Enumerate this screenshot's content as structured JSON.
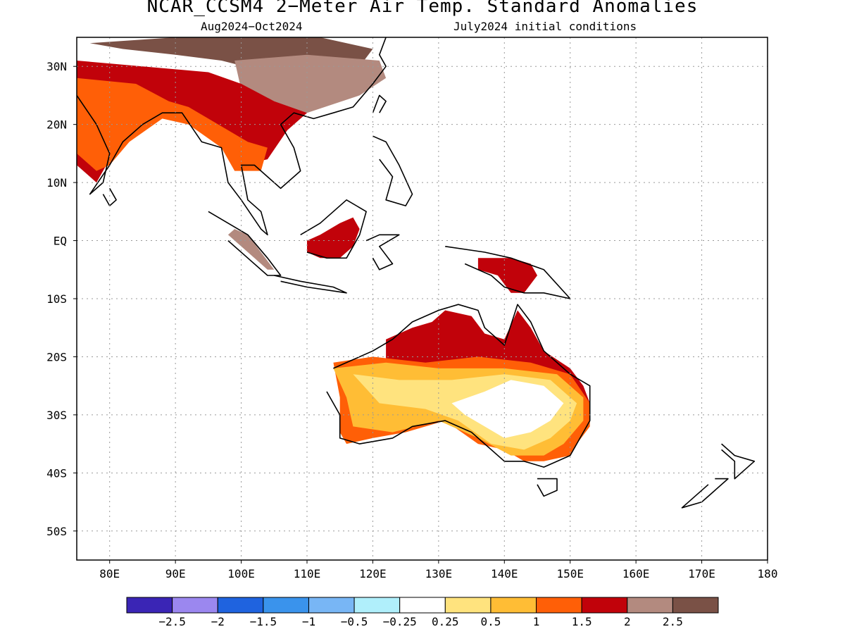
{
  "title": "NCAR_CCSM4 2−Meter Air Temp. Standard Anomalies",
  "subtitle_left": "Aug2024−Oct2024",
  "subtitle_right": "July2024 initial conditions",
  "map": {
    "lon_range": [
      75,
      180
    ],
    "lat_range": [
      -55,
      35
    ],
    "lat_labels": [
      {
        "value": 30,
        "text": "30N"
      },
      {
        "value": 20,
        "text": "20N"
      },
      {
        "value": 10,
        "text": "10N"
      },
      {
        "value": 0,
        "text": "EQ"
      },
      {
        "value": -10,
        "text": "10S"
      },
      {
        "value": -20,
        "text": "20S"
      },
      {
        "value": -30,
        "text": "30S"
      },
      {
        "value": -40,
        "text": "40S"
      },
      {
        "value": -50,
        "text": "50S"
      }
    ],
    "lon_labels": [
      {
        "value": 80,
        "text": "80E"
      },
      {
        "value": 90,
        "text": "90E"
      },
      {
        "value": 100,
        "text": "100E"
      },
      {
        "value": 110,
        "text": "110E"
      },
      {
        "value": 120,
        "text": "120E"
      },
      {
        "value": 130,
        "text": "130E"
      },
      {
        "value": 140,
        "text": "140E"
      },
      {
        "value": 150,
        "text": "150E"
      },
      {
        "value": 160,
        "text": "160E"
      },
      {
        "value": 170,
        "text": "170E"
      },
      {
        "value": 180,
        "text": "180"
      }
    ],
    "gridlines": "dotted"
  },
  "colorbar": {
    "colors": [
      "#3a25b5",
      "#9b87ef",
      "#1f63df",
      "#3a93ec",
      "#78b6f5",
      "#b0effb",
      "#ffffff",
      "#ffe37e",
      "#ffbd35",
      "#ff5f07",
      "#c1020a",
      "#b38a7f",
      "#7a5146"
    ],
    "labels": [
      "−2.5",
      "−2",
      "−1.5",
      "−1",
      "−0.5",
      "−0.25",
      "0.25",
      "0.5",
      "1",
      "1.5",
      "2",
      "2.5"
    ]
  },
  "anomaly_regions": [
    {
      "name": "tibet",
      "level": "above 2.5",
      "color": "#7a5146",
      "points": [
        [
          77,
          34
        ],
        [
          90,
          35
        ],
        [
          102,
          35
        ],
        [
          112,
          35
        ],
        [
          120,
          33
        ],
        [
          118,
          30
        ],
        [
          110,
          30
        ],
        [
          104,
          29
        ],
        [
          97,
          31
        ],
        [
          90,
          32
        ],
        [
          82,
          33
        ]
      ]
    },
    {
      "name": "china",
      "level": "2 to 2.5",
      "color": "#b38a7f",
      "points": [
        [
          99,
          31
        ],
        [
          110,
          32
        ],
        [
          121,
          31
        ],
        [
          122,
          28
        ],
        [
          118,
          25
        ],
        [
          110,
          22
        ],
        [
          104,
          23
        ],
        [
          100,
          26
        ]
      ]
    },
    {
      "name": "south-asia-north",
      "level": "1.5 to 2",
      "color": "#c1020a",
      "points": [
        [
          75,
          31
        ],
        [
          85,
          30
        ],
        [
          95,
          29
        ],
        [
          100,
          27
        ],
        [
          105,
          24
        ],
        [
          110,
          22
        ],
        [
          107,
          19
        ],
        [
          104,
          14
        ],
        [
          100,
          13
        ],
        [
          97,
          16
        ],
        [
          92,
          22
        ],
        [
          88,
          22
        ],
        [
          84,
          19
        ],
        [
          80,
          14
        ],
        [
          78,
          10
        ],
        [
          75,
          13
        ]
      ]
    },
    {
      "name": "south-asia",
      "level": "1 to 1.5",
      "color": "#ff5f07",
      "points": [
        [
          75,
          28
        ],
        [
          84,
          27
        ],
        [
          89,
          24
        ],
        [
          92,
          23
        ],
        [
          95,
          21
        ],
        [
          98,
          19
        ],
        [
          101,
          17
        ],
        [
          104,
          16
        ],
        [
          103,
          12
        ],
        [
          99,
          12
        ],
        [
          97,
          16
        ],
        [
          92,
          20
        ],
        [
          88,
          21
        ],
        [
          83,
          17
        ],
        [
          80,
          13
        ],
        [
          78,
          12
        ],
        [
          75,
          15
        ]
      ]
    },
    {
      "name": "borneo",
      "level": "1.5 to 2",
      "color": "#c1020a",
      "points": [
        [
          110,
          0
        ],
        [
          112,
          1
        ],
        [
          115,
          3
        ],
        [
          117,
          4
        ],
        [
          118,
          2
        ],
        [
          117,
          -1
        ],
        [
          115,
          -3
        ],
        [
          112,
          -3
        ],
        [
          110,
          -2
        ]
      ]
    },
    {
      "name": "sumatra",
      "level": "2 to 2.5",
      "color": "#b38a7f",
      "points": [
        [
          99,
          2
        ],
        [
          101,
          1
        ],
        [
          103,
          -2
        ],
        [
          105,
          -5
        ],
        [
          104,
          -5
        ],
        [
          102,
          -3
        ],
        [
          100,
          -1
        ],
        [
          98,
          1
        ]
      ]
    },
    {
      "name": "new-guinea",
      "level": "1.5 to 2",
      "color": "#c1020a",
      "points": [
        [
          136,
          -3
        ],
        [
          141,
          -3
        ],
        [
          144,
          -4
        ],
        [
          145,
          -6
        ],
        [
          143,
          -9
        ],
        [
          141,
          -9
        ],
        [
          139,
          -6
        ],
        [
          136,
          -5
        ]
      ]
    },
    {
      "name": "australia-north",
      "level": "1.5 to 2",
      "color": "#c1020a",
      "points": [
        [
          122,
          -17
        ],
        [
          126,
          -15
        ],
        [
          129,
          -14
        ],
        [
          131,
          -12
        ],
        [
          135,
          -13
        ],
        [
          137,
          -16
        ],
        [
          140,
          -17
        ],
        [
          142,
          -12
        ],
        [
          144,
          -15
        ],
        [
          146,
          -19
        ],
        [
          150,
          -22
        ],
        [
          152,
          -25
        ],
        [
          153,
          -28
        ],
        [
          150,
          -30
        ],
        [
          144,
          -27
        ],
        [
          138,
          -24
        ],
        [
          130,
          -23
        ],
        [
          122,
          -21
        ]
      ]
    },
    {
      "name": "australia-orange",
      "level": "1 to 1.5",
      "color": "#ff5f07",
      "points": [
        [
          114,
          -21
        ],
        [
          120,
          -20
        ],
        [
          128,
          -21
        ],
        [
          136,
          -20
        ],
        [
          144,
          -21
        ],
        [
          150,
          -23
        ],
        [
          153,
          -28
        ],
        [
          153,
          -32
        ],
        [
          151,
          -35
        ],
        [
          150,
          -37
        ],
        [
          146,
          -38
        ],
        [
          143,
          -38
        ],
        [
          140,
          -36
        ],
        [
          136,
          -35
        ],
        [
          131,
          -31
        ],
        [
          125,
          -33
        ],
        [
          120,
          -34
        ],
        [
          116,
          -35
        ],
        [
          115,
          -33
        ],
        [
          115,
          -27
        ]
      ]
    },
    {
      "name": "australia-amber",
      "level": "0.5 to 1",
      "color": "#ffbd35",
      "points": [
        [
          114,
          -22
        ],
        [
          122,
          -21
        ],
        [
          130,
          -22
        ],
        [
          140,
          -22
        ],
        [
          148,
          -23
        ],
        [
          152,
          -27
        ],
        [
          152,
          -31
        ],
        [
          149,
          -35
        ],
        [
          146,
          -37
        ],
        [
          141,
          -37
        ],
        [
          136,
          -34
        ],
        [
          130,
          -31
        ],
        [
          123,
          -33
        ],
        [
          117,
          -32
        ],
        [
          116,
          -27
        ]
      ]
    },
    {
      "name": "australia-yellow",
      "level": "0.25 to 0.5",
      "color": "#ffe37e",
      "points": [
        [
          117,
          -23
        ],
        [
          124,
          -24
        ],
        [
          132,
          -24
        ],
        [
          140,
          -23
        ],
        [
          147,
          -24
        ],
        [
          151,
          -28
        ],
        [
          150,
          -31
        ],
        [
          147,
          -34
        ],
        [
          143,
          -36
        ],
        [
          138,
          -35
        ],
        [
          133,
          -31
        ],
        [
          128,
          -29
        ],
        [
          121,
          -28
        ]
      ]
    },
    {
      "name": "australia-white",
      "level": "-0.25 to 0.25",
      "color": "#ffffff",
      "points": [
        [
          132,
          -28
        ],
        [
          137,
          -26
        ],
        [
          141,
          -24
        ],
        [
          146,
          -25
        ],
        [
          149,
          -28
        ],
        [
          147,
          -31
        ],
        [
          144,
          -33
        ],
        [
          140,
          -34
        ],
        [
          137,
          -32
        ],
        [
          134,
          -30
        ]
      ]
    }
  ],
  "coastlines": [
    [
      [
        75,
        25
      ],
      [
        78,
        20
      ],
      [
        80,
        15
      ],
      [
        79,
        10
      ],
      [
        77,
        8
      ],
      [
        80,
        13
      ],
      [
        82,
        17
      ],
      [
        85,
        20
      ],
      [
        88,
        22
      ],
      [
        91,
        22
      ],
      [
        94,
        17
      ],
      [
        97,
        16
      ],
      [
        98,
        10
      ],
      [
        100,
        7
      ],
      [
        103,
        2
      ],
      [
        104,
        1
      ],
      [
        103,
        5
      ],
      [
        101,
        7
      ],
      [
        100,
        13
      ],
      [
        102,
        13
      ],
      [
        104,
        11
      ],
      [
        106,
        9
      ],
      [
        109,
        12
      ],
      [
        108,
        16
      ],
      [
        106,
        20
      ],
      [
        108,
        22
      ],
      [
        111,
        21
      ],
      [
        114,
        22
      ],
      [
        117,
        23
      ],
      [
        120,
        27
      ],
      [
        122,
        30
      ],
      [
        121,
        32
      ],
      [
        122,
        35
      ]
    ],
    [
      [
        95,
        5
      ],
      [
        98,
        3
      ],
      [
        101,
        1
      ],
      [
        104,
        -3
      ],
      [
        106,
        -6
      ],
      [
        104,
        -6
      ],
      [
        101,
        -3
      ],
      [
        98,
        0
      ]
    ],
    [
      [
        105,
        -6
      ],
      [
        109,
        -7
      ],
      [
        114,
        -8
      ],
      [
        116,
        -9
      ],
      [
        110,
        -8
      ],
      [
        106,
        -7
      ]
    ],
    [
      [
        109,
        1
      ],
      [
        112,
        3
      ],
      [
        116,
        7
      ],
      [
        119,
        5
      ],
      [
        118,
        1
      ],
      [
        116,
        -3
      ],
      [
        113,
        -3
      ],
      [
        110,
        -2
      ]
    ],
    [
      [
        119,
        0
      ],
      [
        121,
        1
      ],
      [
        124,
        1
      ],
      [
        121,
        -1
      ],
      [
        123,
        -4
      ],
      [
        121,
        -5
      ],
      [
        120,
        -3
      ]
    ],
    [
      [
        120,
        18
      ],
      [
        122,
        17
      ],
      [
        124,
        13
      ],
      [
        126,
        8
      ],
      [
        125,
        6
      ],
      [
        122,
        7
      ],
      [
        123,
        11
      ],
      [
        121,
        14
      ]
    ],
    [
      [
        131,
        -1
      ],
      [
        137,
        -2
      ],
      [
        141,
        -3
      ],
      [
        146,
        -5
      ],
      [
        150,
        -10
      ],
      [
        146,
        -9
      ],
      [
        143,
        -9
      ],
      [
        140,
        -8
      ],
      [
        138,
        -6
      ],
      [
        134,
        -4
      ]
    ],
    [
      [
        114,
        -22
      ],
      [
        120,
        -19
      ],
      [
        123,
        -17
      ],
      [
        126,
        -14
      ],
      [
        130,
        -12
      ],
      [
        133,
        -11
      ],
      [
        136,
        -12
      ],
      [
        137,
        -15
      ],
      [
        140,
        -18
      ],
      [
        142,
        -11
      ],
      [
        144,
        -14
      ],
      [
        146,
        -19
      ],
      [
        150,
        -23
      ],
      [
        153,
        -25
      ],
      [
        153,
        -31
      ],
      [
        150,
        -37
      ],
      [
        146,
        -39
      ],
      [
        143,
        -38
      ],
      [
        140,
        -38
      ],
      [
        137,
        -35
      ],
      [
        135,
        -33
      ],
      [
        131,
        -31
      ],
      [
        126,
        -32
      ],
      [
        123,
        -34
      ],
      [
        118,
        -35
      ],
      [
        115,
        -34
      ],
      [
        115,
        -30
      ],
      [
        113,
        -26
      ]
    ],
    [
      [
        145,
        -41
      ],
      [
        148,
        -41
      ],
      [
        148,
        -43
      ],
      [
        146,
        -44
      ],
      [
        145,
        -42
      ]
    ],
    [
      [
        172,
        -41
      ],
      [
        174,
        -41
      ],
      [
        172,
        -43
      ],
      [
        170,
        -45
      ],
      [
        167,
        -46
      ],
      [
        169,
        -44
      ],
      [
        171,
        -42
      ]
    ],
    [
      [
        173,
        -35
      ],
      [
        175,
        -37
      ],
      [
        178,
        -38
      ],
      [
        176,
        -40
      ],
      [
        175,
        -41
      ],
      [
        175,
        -38
      ],
      [
        173,
        -36
      ]
    ],
    [
      [
        120,
        22
      ],
      [
        121,
        25
      ],
      [
        122,
        24
      ],
      [
        121,
        22
      ]
    ],
    [
      [
        80,
        9
      ],
      [
        81,
        7
      ],
      [
        80,
        6
      ],
      [
        79,
        8
      ]
    ]
  ]
}
